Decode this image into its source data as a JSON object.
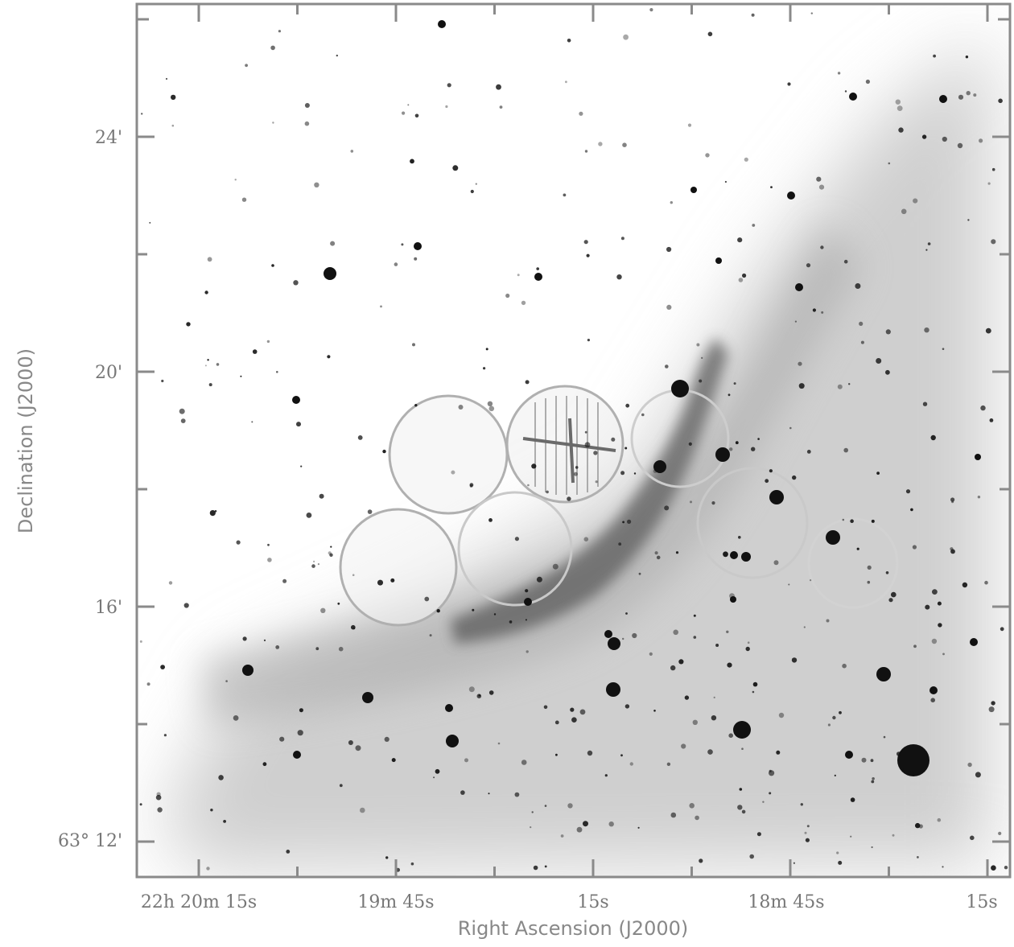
{
  "axes": {
    "x_title": "Right Ascension (J2000)",
    "y_title": "Declination (J2000)",
    "x_ticks": [
      "22h 20m 15s",
      "19m 45s",
      "15s",
      "18m 45s",
      "15s"
    ],
    "y_ticks": [
      "24'",
      "20'",
      "16'",
      "63° 12'"
    ]
  },
  "colors": {
    "frame": "#8a8a8a",
    "overlay": "#9a9a9a",
    "star": "#111111",
    "nebula": "#6e6e6e"
  },
  "overlay": {
    "aperture_circles": 4,
    "source_marker": "cross"
  }
}
